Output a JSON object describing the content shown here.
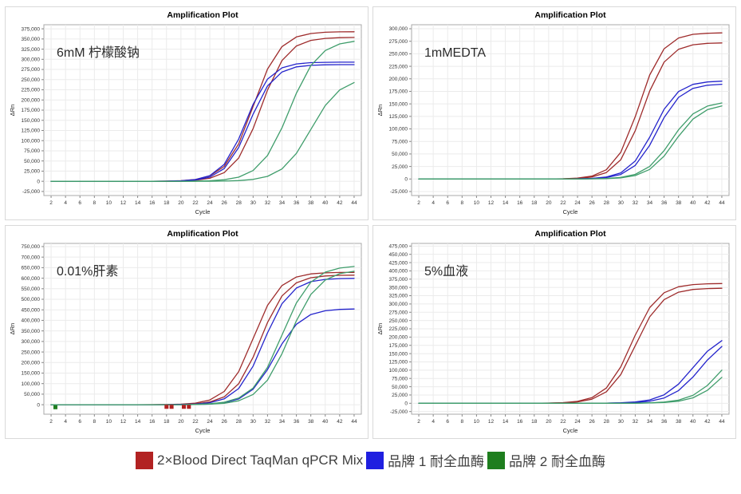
{
  "page": {
    "background": "#ffffff"
  },
  "colors": {
    "red": "#9e2b2b",
    "blue": "#2424cc",
    "green": "#3f9d6b",
    "legend_red": "#b22222",
    "legend_blue": "#1f1fe0",
    "legend_green": "#1e7e1e",
    "grid": "#ebebeb",
    "axis_border": "#a8a8a8",
    "tick_text": "#333333"
  },
  "legend": {
    "items": [
      {
        "label": "2×Blood Direct TaqMan qPCR Mix",
        "color": "#b22222",
        "name": "legend-item-qpcr-mix"
      },
      {
        "label": "品牌 1 耐全血酶",
        "color": "#1f1fe0",
        "name": "legend-item-brand1"
      },
      {
        "label": "品牌 2 耐全血酶",
        "color": "#1e7e1e",
        "name": "legend-item-brand2"
      }
    ]
  },
  "chart_data": [
    {
      "type": "line",
      "title": "Amplification Plot",
      "condition_label": "6mM 柠檬酸钠",
      "xlabel": "Cycle",
      "ylabel": "ΔRn",
      "xlim": [
        1,
        45
      ],
      "ylim": [
        -35000,
        385000
      ],
      "yticks": {
        "min": -25000,
        "max": 375000,
        "step": 25000
      },
      "xticks": {
        "min": 2,
        "max": 44,
        "step": 2
      },
      "x": [
        2,
        4,
        6,
        8,
        10,
        12,
        14,
        16,
        18,
        20,
        22,
        24,
        26,
        28,
        30,
        32,
        34,
        36,
        38,
        40,
        42,
        44
      ],
      "series": [
        {
          "name": "2×Blood Direct TaqMan qPCR Mix rep1",
          "color": "#9e2b2b",
          "values": [
            0,
            0,
            0,
            0,
            0,
            0,
            0,
            0,
            500,
            1500,
            4500,
            13100,
            36700,
            91900,
            184000,
            276100,
            331300,
            354900,
            363500,
            366500,
            367500,
            367800
          ]
        },
        {
          "name": "2×Blood Direct TaqMan qPCR Mix rep2",
          "color": "#9e2b2b",
          "values": [
            0,
            0,
            0,
            0,
            0,
            0,
            0,
            0,
            0,
            850,
            2500,
            7400,
            21300,
            57000,
            129500,
            224500,
            297000,
            332700,
            346600,
            351500,
            353200,
            353700
          ]
        },
        {
          "name": "品牌 1 耐全血酶 rep1",
          "color": "#2424cc",
          "values": [
            0,
            0,
            0,
            0,
            0,
            0,
            0,
            0,
            400,
            1300,
            4300,
            13900,
            41600,
            103800,
            189200,
            251400,
            279100,
            288700,
            291700,
            292600,
            292900,
            293000
          ]
        },
        {
          "name": "品牌 1 耐全血酶 rep2",
          "color": "#2424cc",
          "values": [
            0,
            0,
            0,
            0,
            0,
            0,
            0,
            0,
            300,
            950,
            3200,
            10200,
            31300,
            83000,
            164900,
            234700,
            268900,
            281300,
            285200,
            286500,
            286800,
            286900
          ]
        },
        {
          "name": "品牌 2 耐全血酶 rep1",
          "color": "#3f9d6b",
          "values": [
            0,
            0,
            0,
            0,
            0,
            0,
            0,
            0,
            0,
            0,
            500,
            1400,
            3800,
            10100,
            26400,
            63500,
            131400,
            216600,
            284500,
            321600,
            337900,
            344200
          ]
        },
        {
          "name": "品牌 2 耐全血酶 rep2",
          "color": "#3f9d6b",
          "values": [
            0,
            0,
            0,
            0,
            0,
            0,
            0,
            0,
            0,
            0,
            0,
            200,
            600,
            1700,
            4700,
            12100,
            30400,
            68600,
            127500,
            186400,
            224600,
            242900
          ]
        }
      ]
    },
    {
      "type": "line",
      "title": "Amplification Plot",
      "condition_label": "1mMEDTA",
      "xlabel": "Cycle",
      "ylabel": "ΔRn",
      "xlim": [
        1,
        45
      ],
      "ylim": [
        -33000,
        308000
      ],
      "yticks": {
        "min": -25000,
        "max": 300000,
        "step": 25000
      },
      "xticks": {
        "min": 2,
        "max": 44,
        "step": 2
      },
      "x": [
        2,
        4,
        6,
        8,
        10,
        12,
        14,
        16,
        18,
        20,
        22,
        24,
        26,
        28,
        30,
        32,
        34,
        36,
        38,
        40,
        42,
        44
      ],
      "series": [
        {
          "name": "2×Blood Direct TaqMan qPCR Mix rep1",
          "color": "#9e2b2b",
          "values": [
            0,
            0,
            0,
            0,
            0,
            0,
            0,
            0,
            0,
            0,
            500,
            1800,
            5800,
            18400,
            53300,
            124300,
            207600,
            260100,
            281600,
            288800,
            291000,
            291700
          ]
        },
        {
          "name": "2×Blood Direct TaqMan qPCR Mix rep2",
          "color": "#9e2b2b",
          "values": [
            0,
            0,
            0,
            0,
            0,
            0,
            0,
            0,
            0,
            0,
            400,
            1200,
            4000,
            12900,
            38600,
            96400,
            175600,
            233400,
            259100,
            268000,
            270800,
            271600
          ]
        },
        {
          "name": "品牌 1 耐全血酶 rep1",
          "color": "#2424cc",
          "values": [
            0,
            0,
            0,
            0,
            0,
            0,
            0,
            0,
            0,
            0,
            0,
            400,
            1200,
            3900,
            12300,
            35800,
            83400,
            139300,
            174600,
            189000,
            193800,
            195400
          ]
        },
        {
          "name": "品牌 1 耐全血酶 rep2",
          "color": "#2424cc",
          "values": [
            0,
            0,
            0,
            0,
            0,
            0,
            0,
            0,
            0,
            0,
            0,
            300,
            900,
            2800,
            9000,
            27000,
            67300,
            122700,
            163000,
            181000,
            187200,
            189100
          ]
        },
        {
          "name": "品牌 2 耐全血酶 rep1",
          "color": "#3f9d6b",
          "values": [
            0,
            0,
            0,
            0,
            0,
            0,
            0,
            0,
            0,
            0,
            0,
            0,
            400,
            1100,
            3200,
            9300,
            25000,
            56700,
            98300,
            130000,
            145700,
            151800
          ]
        },
        {
          "name": "品牌 2 耐全血酶 rep2",
          "color": "#3f9d6b",
          "values": [
            0,
            0,
            0,
            0,
            0,
            0,
            0,
            0,
            0,
            0,
            0,
            0,
            300,
            800,
            2400,
            6900,
            19100,
            45700,
            85200,
            119700,
            138400,
            145900
          ]
        }
      ]
    },
    {
      "type": "line",
      "title": "Amplification Plot",
      "condition_label": "0.01%肝素",
      "xlabel": "Cycle",
      "ylabel": "ΔRn",
      "xlim": [
        1,
        45
      ],
      "ylim": [
        -45000,
        765000
      ],
      "yticks": {
        "min": 0,
        "max": 750000,
        "step": 50000
      },
      "xticks": {
        "min": 2,
        "max": 44,
        "step": 2
      },
      "x": [
        2,
        4,
        6,
        8,
        10,
        12,
        14,
        16,
        18,
        20,
        22,
        24,
        26,
        28,
        30,
        32,
        34,
        36,
        38,
        40,
        42,
        44
      ],
      "markers": [
        {
          "x": 2.6,
          "y": -12000,
          "color": "#1e7e1e"
        },
        {
          "x": 18.0,
          "y": -10000,
          "color": "#b22222"
        },
        {
          "x": 18.7,
          "y": -10000,
          "color": "#b22222"
        },
        {
          "x": 20.4,
          "y": -10000,
          "color": "#b22222"
        },
        {
          "x": 21.1,
          "y": -10000,
          "color": "#b22222"
        }
      ],
      "series": [
        {
          "name": "2×Blood Direct TaqMan qPCR Mix rep1",
          "color": "#9e2b2b",
          "values": [
            0,
            0,
            0,
            0,
            0,
            0,
            0,
            300,
            850,
            2600,
            7600,
            22400,
            62700,
            156800,
            314000,
            471200,
            565300,
            605600,
            620400,
            625400,
            627100,
            627700
          ]
        },
        {
          "name": "2×Blood Direct TaqMan qPCR Mix rep2",
          "color": "#9e2b2b",
          "values": [
            0,
            0,
            0,
            0,
            0,
            0,
            0,
            0,
            500,
            1500,
            4300,
            12800,
            37000,
            99100,
            225000,
            390000,
            515900,
            578000,
            602200,
            610700,
            613500,
            614500
          ]
        },
        {
          "name": "品牌 1 耐全血酶 rep1",
          "color": "#2424cc",
          "values": [
            0,
            0,
            0,
            0,
            0,
            0,
            0,
            0,
            400,
            1100,
            3200,
            9500,
            27800,
            76400,
            182800,
            341000,
            478900,
            553400,
            583600,
            594400,
            598100,
            599400
          ]
        },
        {
          "name": "品牌 1 耐全血酶 rep2",
          "color": "#2424cc",
          "values": [
            0,
            0,
            0,
            0,
            0,
            0,
            0,
            0,
            0,
            0,
            1100,
            3200,
            9500,
            27300,
            73300,
            166500,
            288500,
            381700,
            427700,
            445500,
            451800,
            453900
          ]
        },
        {
          "name": "品牌 2 耐全血酶 rep1",
          "color": "#3f9d6b",
          "values": [
            0,
            0,
            0,
            0,
            0,
            0,
            0,
            0,
            0,
            0,
            1700,
            4400,
            11900,
            31300,
            78700,
            177500,
            330000,
            482500,
            581300,
            628700,
            648100,
            655600
          ]
        },
        {
          "name": "品牌 2 耐全血酶 rep2",
          "color": "#3f9d6b",
          "values": [
            0,
            0,
            0,
            0,
            0,
            0,
            0,
            0,
            0,
            0,
            1000,
            2600,
            7000,
            18600,
            48600,
            116700,
            241600,
            398400,
            523300,
            591400,
            621400,
            633000
          ]
        }
      ]
    },
    {
      "type": "line",
      "title": "Amplification Plot",
      "condition_label": "5%血液",
      "xlabel": "Cycle",
      "ylabel": "ΔRn",
      "xlim": [
        1,
        45
      ],
      "ylim": [
        -33000,
        483000
      ],
      "yticks": {
        "min": -25000,
        "max": 475000,
        "step": 25000
      },
      "xticks": {
        "min": 2,
        "max": 44,
        "step": 2
      },
      "x": [
        2,
        4,
        6,
        8,
        10,
        12,
        14,
        16,
        18,
        20,
        22,
        24,
        26,
        28,
        30,
        32,
        34,
        36,
        38,
        40,
        42,
        44
      ],
      "series": [
        {
          "name": "2×Blood Direct TaqMan qPCR Mix rep1",
          "color": "#9e2b2b",
          "values": [
            0,
            0,
            0,
            0,
            0,
            0,
            0,
            0,
            0,
            700,
            1900,
            5800,
            16800,
            46100,
            110300,
            205700,
            288900,
            333900,
            352100,
            358600,
            360900,
            361600
          ]
        },
        {
          "name": "2×Blood Direct TaqMan qPCR Mix rep2",
          "color": "#9e2b2b",
          "values": [
            0,
            0,
            0,
            0,
            0,
            0,
            0,
            0,
            0,
            500,
            1400,
            4200,
            12400,
            34700,
            86900,
            174000,
            261100,
            313300,
            335600,
            343800,
            346600,
            347500
          ]
        },
        {
          "name": "品牌 1 耐全血酶 rep1",
          "color": "#2424cc",
          "values": [
            0,
            0,
            0,
            0,
            0,
            0,
            0,
            0,
            0,
            0,
            0,
            0,
            0,
            500,
            1400,
            3900,
            10200,
            25600,
            57800,
            107500,
            157200,
            189400
          ]
        },
        {
          "name": "品牌 1 耐全血酶 rep2",
          "color": "#2424cc",
          "values": [
            0,
            0,
            0,
            0,
            0,
            0,
            0,
            0,
            0,
            0,
            0,
            0,
            0,
            300,
            900,
            2300,
            6100,
            15900,
            38300,
            79300,
            130700,
            171700
          ]
        },
        {
          "name": "品牌 2 耐全血酶 rep1",
          "color": "#3f9d6b",
          "values": [
            0,
            0,
            0,
            0,
            0,
            0,
            0,
            0,
            0,
            0,
            0,
            0,
            0,
            0,
            0,
            500,
            1300,
            3600,
            9500,
            23800,
            53800,
            100000
          ]
        },
        {
          "name": "品牌 2 耐全血酶 rep2",
          "color": "#3f9d6b",
          "values": [
            0,
            0,
            0,
            0,
            0,
            0,
            0,
            0,
            0,
            0,
            0,
            0,
            0,
            0,
            0,
            0,
            900,
            2400,
            6400,
            16500,
            39100,
            78500
          ]
        }
      ]
    }
  ]
}
